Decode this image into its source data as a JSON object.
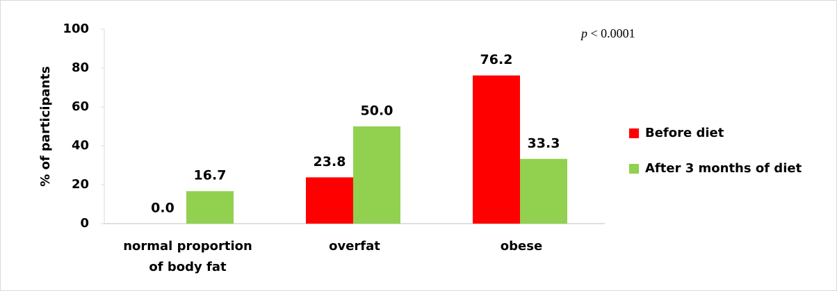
{
  "chart_data": {
    "type": "bar",
    "y_label": "% of participants",
    "annotation": {
      "variable": "p",
      "text": "< 0.0001"
    },
    "categories": [
      [
        "normal proportion",
        "of body fat"
      ],
      [
        "overfat"
      ],
      [
        "obese"
      ]
    ],
    "series": [
      {
        "name": "Before diet",
        "color": "#ff0000",
        "values": [
          0.0,
          23.8,
          76.2
        ],
        "value_labels": [
          "0.0",
          "23.8",
          "76.2"
        ]
      },
      {
        "name": "After 3 months of diet",
        "color": "#92d050",
        "values": [
          16.7,
          50.0,
          33.3
        ],
        "value_labels": [
          "16.7",
          "50.0",
          "33.3"
        ]
      }
    ],
    "ylim": [
      0,
      100
    ],
    "yticks": [
      0,
      20,
      40,
      60,
      80,
      100
    ],
    "grid": false
  }
}
